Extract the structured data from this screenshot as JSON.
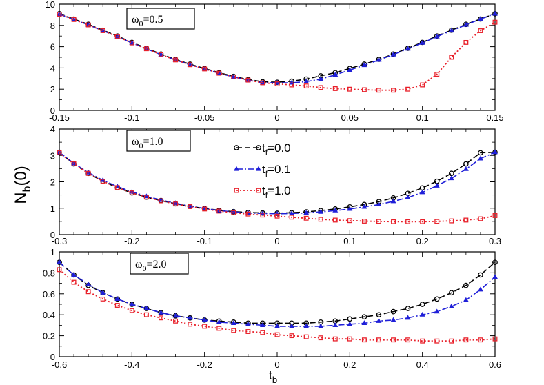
{
  "figure": {
    "ylabel_main": "N",
    "ylabel_sub": "b",
    "ylabel_suffix": "(0)",
    "xlabel_main": "t",
    "xlabel_sub": "b",
    "legend": [
      {
        "prefix": "t",
        "sub": "f",
        "suffix": "=0.0",
        "color": "#000000",
        "marker": "circle",
        "dash": "dashed"
      },
      {
        "prefix": "t",
        "sub": "f",
        "suffix": "=0.1",
        "color": "#1f1fd8",
        "marker": "triangle",
        "dash": "dashdot"
      },
      {
        "prefix": "t",
        "sub": "f",
        "suffix": "=1.0",
        "color": "#e8202a",
        "marker": "square",
        "dash": "dotted"
      }
    ]
  },
  "chart_data": [
    {
      "type": "line",
      "title": "ω0=0.5",
      "annotation": {
        "symbol": "ω",
        "sub": "0",
        "value": "=0.5"
      },
      "xlim": [
        -0.15,
        0.15
      ],
      "ylim": [
        0,
        10
      ],
      "xticks": [
        -0.15,
        -0.1,
        -0.05,
        0,
        0.05,
        0.1,
        0.15
      ],
      "xtick_labels": [
        "-0.15",
        "-0.1",
        "-0.05",
        "0",
        "0.05",
        "0.1",
        "0.15"
      ],
      "yticks": [
        0,
        2,
        4,
        6,
        8,
        10
      ],
      "ytick_labels": [
        "0",
        "2",
        "4",
        "6",
        "8",
        "10"
      ],
      "series": [
        {
          "name": "tf=0.0",
          "x": [
            -0.15,
            -0.14,
            -0.13,
            -0.12,
            -0.11,
            -0.1,
            -0.09,
            -0.08,
            -0.07,
            -0.06,
            -0.05,
            -0.04,
            -0.03,
            -0.02,
            -0.01,
            0,
            0.01,
            0.02,
            0.03,
            0.04,
            0.05,
            0.06,
            0.07,
            0.08,
            0.09,
            0.1,
            0.11,
            0.12,
            0.13,
            0.14,
            0.15
          ],
          "y": [
            9.1,
            8.6,
            8.1,
            7.55,
            7.0,
            6.4,
            5.85,
            5.3,
            4.8,
            4.35,
            3.95,
            3.55,
            3.2,
            2.9,
            2.7,
            2.65,
            2.75,
            2.95,
            3.25,
            3.55,
            3.95,
            4.35,
            4.8,
            5.3,
            5.85,
            6.4,
            7.0,
            7.55,
            8.1,
            8.6,
            9.1
          ]
        },
        {
          "name": "tf=0.1",
          "x": [
            -0.15,
            -0.14,
            -0.13,
            -0.12,
            -0.11,
            -0.1,
            -0.09,
            -0.08,
            -0.07,
            -0.06,
            -0.05,
            -0.04,
            -0.03,
            -0.02,
            -0.01,
            0,
            0.01,
            0.02,
            0.03,
            0.04,
            0.05,
            0.06,
            0.07,
            0.08,
            0.09,
            0.1,
            0.11,
            0.12,
            0.13,
            0.14,
            0.15
          ],
          "y": [
            9.05,
            8.55,
            8.05,
            7.5,
            6.95,
            6.35,
            5.8,
            5.25,
            4.75,
            4.3,
            3.9,
            3.5,
            3.15,
            2.85,
            2.6,
            2.6,
            2.6,
            2.7,
            2.95,
            3.35,
            3.8,
            4.25,
            4.75,
            5.25,
            5.8,
            6.35,
            6.95,
            7.5,
            8.05,
            8.6,
            9.1
          ]
        },
        {
          "name": "tf=1.0",
          "x": [
            -0.15,
            -0.14,
            -0.13,
            -0.12,
            -0.11,
            -0.1,
            -0.09,
            -0.08,
            -0.07,
            -0.06,
            -0.05,
            -0.04,
            -0.03,
            -0.02,
            -0.01,
            0,
            0.01,
            0.02,
            0.03,
            0.04,
            0.05,
            0.06,
            0.07,
            0.08,
            0.09,
            0.1,
            0.11,
            0.12,
            0.13,
            0.14,
            0.15
          ],
          "y": [
            9.05,
            8.55,
            8.05,
            7.5,
            6.95,
            6.35,
            5.8,
            5.25,
            4.75,
            4.3,
            3.9,
            3.5,
            3.15,
            2.85,
            2.6,
            2.5,
            2.4,
            2.3,
            2.15,
            2.05,
            2.0,
            1.95,
            1.9,
            1.9,
            2.0,
            2.4,
            3.4,
            5.0,
            6.4,
            7.5,
            8.3
          ]
        }
      ]
    },
    {
      "type": "line",
      "title": "ω0=1.0",
      "annotation": {
        "symbol": "ω",
        "sub": "0",
        "value": "=1.0"
      },
      "xlim": [
        -0.3,
        0.3
      ],
      "ylim": [
        0,
        4
      ],
      "xticks": [
        -0.3,
        -0.2,
        -0.1,
        0,
        0.1,
        0.2,
        0.3
      ],
      "xtick_labels": [
        "-0.3",
        "-0.2",
        "-0.1",
        "0",
        "0.1",
        "0.2",
        "0.3"
      ],
      "yticks": [
        0,
        1,
        2,
        3,
        4
      ],
      "ytick_labels": [
        "0",
        "1",
        "2",
        "3",
        "4"
      ],
      "series": [
        {
          "name": "tf=0.0",
          "x": [
            -0.3,
            -0.28,
            -0.26,
            -0.24,
            -0.22,
            -0.2,
            -0.18,
            -0.16,
            -0.14,
            -0.12,
            -0.1,
            -0.08,
            -0.06,
            -0.04,
            -0.02,
            0,
            0.02,
            0.04,
            0.06,
            0.08,
            0.1,
            0.12,
            0.14,
            0.16,
            0.18,
            0.2,
            0.22,
            0.24,
            0.26,
            0.28,
            0.3
          ],
          "y": [
            3.12,
            2.68,
            2.32,
            2.02,
            1.78,
            1.58,
            1.42,
            1.29,
            1.17,
            1.07,
            0.99,
            0.92,
            0.87,
            0.84,
            0.82,
            0.81,
            0.83,
            0.86,
            0.91,
            0.97,
            1.05,
            1.14,
            1.25,
            1.39,
            1.56,
            1.77,
            2.02,
            2.32,
            2.68,
            3.1,
            3.12
          ]
        },
        {
          "name": "tf=0.1",
          "x": [
            -0.3,
            -0.28,
            -0.26,
            -0.24,
            -0.22,
            -0.2,
            -0.18,
            -0.16,
            -0.14,
            -0.12,
            -0.1,
            -0.08,
            -0.06,
            -0.04,
            -0.02,
            0,
            0.02,
            0.04,
            0.06,
            0.08,
            0.1,
            0.12,
            0.14,
            0.16,
            0.18,
            0.2,
            0.22,
            0.24,
            0.26,
            0.28,
            0.3
          ],
          "y": [
            3.12,
            2.7,
            2.35,
            2.06,
            1.82,
            1.62,
            1.45,
            1.31,
            1.19,
            1.08,
            0.99,
            0.91,
            0.86,
            0.82,
            0.8,
            0.79,
            0.8,
            0.82,
            0.86,
            0.91,
            0.97,
            1.05,
            1.14,
            1.26,
            1.4,
            1.6,
            1.85,
            2.13,
            2.48,
            2.88,
            3.12
          ]
        },
        {
          "name": "tf=1.0",
          "x": [
            -0.3,
            -0.28,
            -0.26,
            -0.24,
            -0.22,
            -0.2,
            -0.18,
            -0.16,
            -0.14,
            -0.12,
            -0.1,
            -0.08,
            -0.06,
            -0.04,
            -0.02,
            0,
            0.02,
            0.04,
            0.06,
            0.08,
            0.1,
            0.12,
            0.14,
            0.16,
            0.18,
            0.2,
            0.22,
            0.24,
            0.26,
            0.28,
            0.3
          ],
          "y": [
            3.1,
            2.68,
            2.32,
            2.02,
            1.78,
            1.58,
            1.42,
            1.28,
            1.16,
            1.06,
            0.97,
            0.89,
            0.83,
            0.78,
            0.74,
            0.7,
            0.66,
            0.62,
            0.58,
            0.55,
            0.53,
            0.51,
            0.5,
            0.49,
            0.49,
            0.49,
            0.5,
            0.52,
            0.55,
            0.6,
            0.72
          ]
        }
      ]
    },
    {
      "type": "line",
      "title": "ω0=2.0",
      "annotation": {
        "symbol": "ω",
        "sub": "0",
        "value": "=2.0"
      },
      "xlim": [
        -0.6,
        0.6
      ],
      "ylim": [
        0,
        1
      ],
      "xticks": [
        -0.6,
        -0.4,
        -0.2,
        0,
        0.2,
        0.4,
        0.6
      ],
      "xtick_labels": [
        "-0.6",
        "-0.4",
        "-0.2",
        "0",
        "0.2",
        "0.4",
        "0.6"
      ],
      "yticks": [
        0,
        0.2,
        0.4,
        0.6,
        0.8,
        1
      ],
      "ytick_labels": [
        "0",
        "0.2",
        "0.4",
        "0.6",
        "0.8",
        "1"
      ],
      "series": [
        {
          "name": "tf=0.0",
          "x": [
            -0.6,
            -0.56,
            -0.52,
            -0.48,
            -0.44,
            -0.4,
            -0.36,
            -0.32,
            -0.28,
            -0.24,
            -0.2,
            -0.16,
            -0.12,
            -0.08,
            -0.04,
            0,
            0.04,
            0.08,
            0.12,
            0.16,
            0.2,
            0.24,
            0.28,
            0.32,
            0.36,
            0.4,
            0.44,
            0.48,
            0.52,
            0.56,
            0.6
          ],
          "y": [
            0.9,
            0.78,
            0.68,
            0.61,
            0.55,
            0.5,
            0.46,
            0.42,
            0.39,
            0.37,
            0.35,
            0.34,
            0.33,
            0.32,
            0.32,
            0.32,
            0.32,
            0.32,
            0.33,
            0.34,
            0.36,
            0.38,
            0.4,
            0.43,
            0.46,
            0.5,
            0.55,
            0.61,
            0.68,
            0.78,
            0.9
          ]
        },
        {
          "name": "tf=0.1",
          "x": [
            -0.6,
            -0.56,
            -0.52,
            -0.48,
            -0.44,
            -0.4,
            -0.36,
            -0.32,
            -0.28,
            -0.24,
            -0.2,
            -0.16,
            -0.12,
            -0.08,
            -0.04,
            0,
            0.04,
            0.08,
            0.12,
            0.16,
            0.2,
            0.24,
            0.28,
            0.32,
            0.36,
            0.4,
            0.44,
            0.48,
            0.52,
            0.56,
            0.6
          ],
          "y": [
            0.9,
            0.78,
            0.69,
            0.61,
            0.55,
            0.5,
            0.46,
            0.42,
            0.39,
            0.37,
            0.35,
            0.33,
            0.32,
            0.31,
            0.3,
            0.29,
            0.29,
            0.29,
            0.29,
            0.3,
            0.31,
            0.32,
            0.34,
            0.35,
            0.37,
            0.4,
            0.43,
            0.48,
            0.54,
            0.64,
            0.76
          ]
        },
        {
          "name": "tf=1.0",
          "x": [
            -0.6,
            -0.56,
            -0.52,
            -0.48,
            -0.44,
            -0.4,
            -0.36,
            -0.32,
            -0.28,
            -0.24,
            -0.2,
            -0.16,
            -0.12,
            -0.08,
            -0.04,
            0,
            0.04,
            0.08,
            0.12,
            0.16,
            0.2,
            0.24,
            0.28,
            0.32,
            0.36,
            0.4,
            0.44,
            0.48,
            0.52,
            0.56,
            0.6
          ],
          "y": [
            0.83,
            0.71,
            0.62,
            0.55,
            0.49,
            0.44,
            0.4,
            0.37,
            0.34,
            0.31,
            0.29,
            0.27,
            0.25,
            0.24,
            0.23,
            0.21,
            0.2,
            0.19,
            0.18,
            0.17,
            0.17,
            0.16,
            0.16,
            0.16,
            0.16,
            0.15,
            0.15,
            0.15,
            0.16,
            0.16,
            0.17
          ]
        }
      ]
    }
  ]
}
